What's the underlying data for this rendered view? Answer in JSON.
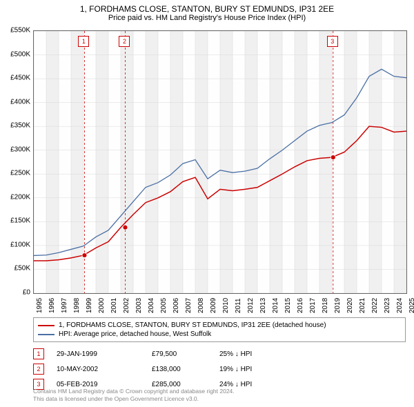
{
  "title": "1, FORDHAMS CLOSE, STANTON, BURY ST EDMUNDS, IP31 2EE",
  "subtitle": "Price paid vs. HM Land Registry's House Price Index (HPI)",
  "chart": {
    "type": "line",
    "background_color": "#ffffff",
    "plot_border_color": "#666666",
    "grid_color": "#d8d8d8",
    "alt_band_color": "#f0f0f0",
    "x_axis": {
      "min": 1995,
      "max": 2025,
      "tick_step": 1,
      "label_fontsize": 10
    },
    "y_axis": {
      "min": 0,
      "max": 550000,
      "tick_step": 50000,
      "tick_format_prefix": "£",
      "tick_format_suffix": "K",
      "label_fontsize": 10
    },
    "series": [
      {
        "name": "1, FORDHAMS CLOSE, STANTON, BURY ST EDMUNDS, IP31 2EE (detached house)",
        "color": "#cc0000",
        "line_width": 1.5,
        "data": [
          [
            1995,
            68000
          ],
          [
            1996,
            68000
          ],
          [
            1997,
            70000
          ],
          [
            1998,
            74000
          ],
          [
            1999,
            79500
          ],
          [
            2000,
            95000
          ],
          [
            2001,
            108000
          ],
          [
            2002,
            138000
          ],
          [
            2003,
            165000
          ],
          [
            2004,
            190000
          ],
          [
            2005,
            200000
          ],
          [
            2006,
            213000
          ],
          [
            2007,
            234000
          ],
          [
            2008,
            243000
          ],
          [
            2009,
            198000
          ],
          [
            2010,
            218000
          ],
          [
            2011,
            215000
          ],
          [
            2012,
            218000
          ],
          [
            2013,
            222000
          ],
          [
            2014,
            236000
          ],
          [
            2015,
            250000
          ],
          [
            2016,
            265000
          ],
          [
            2017,
            278000
          ],
          [
            2018,
            283000
          ],
          [
            2019,
            285000
          ],
          [
            2020,
            296000
          ],
          [
            2021,
            320000
          ],
          [
            2022,
            350000
          ],
          [
            2023,
            348000
          ],
          [
            2024,
            338000
          ],
          [
            2025,
            340000
          ]
        ]
      },
      {
        "name": "HPI: Average price, detached house, West Suffolk",
        "color": "#4a6fa5",
        "line_width": 1.3,
        "data": [
          [
            1995,
            79000
          ],
          [
            1996,
            80000
          ],
          [
            1997,
            85000
          ],
          [
            1998,
            92000
          ],
          [
            1999,
            99000
          ],
          [
            2000,
            118000
          ],
          [
            2001,
            132000
          ],
          [
            2002,
            162000
          ],
          [
            2003,
            192000
          ],
          [
            2004,
            222000
          ],
          [
            2005,
            232000
          ],
          [
            2006,
            248000
          ],
          [
            2007,
            272000
          ],
          [
            2008,
            280000
          ],
          [
            2009,
            240000
          ],
          [
            2010,
            258000
          ],
          [
            2011,
            253000
          ],
          [
            2012,
            256000
          ],
          [
            2013,
            262000
          ],
          [
            2014,
            282000
          ],
          [
            2015,
            300000
          ],
          [
            2016,
            320000
          ],
          [
            2017,
            340000
          ],
          [
            2018,
            352000
          ],
          [
            2019,
            358000
          ],
          [
            2020,
            374000
          ],
          [
            2021,
            410000
          ],
          [
            2022,
            455000
          ],
          [
            2023,
            470000
          ],
          [
            2024,
            455000
          ],
          [
            2025,
            452000
          ]
        ]
      }
    ],
    "markers": [
      {
        "num": "1",
        "date": "29-JAN-1999",
        "price": "£79,500",
        "delta": "25% ↓ HPI",
        "x": 1999.08,
        "y": 79500,
        "vline_color": "#cc0000"
      },
      {
        "num": "2",
        "date": "10-MAY-2002",
        "price": "£138,000",
        "delta": "19% ↓ HPI",
        "x": 2002.36,
        "y": 138000,
        "vline_color": "#cc0000"
      },
      {
        "num": "3",
        "date": "05-FEB-2019",
        "price": "£285,000",
        "delta": "24% ↓ HPI",
        "x": 2019.1,
        "y": 285000,
        "vline_color": "#cc0000"
      }
    ]
  },
  "legend_title_fontsize": 10,
  "footer_line1": "Contains HM Land Registry data © Crown copyright and database right 2024.",
  "footer_line2": "This data is licensed under the Open Government Licence v3.0."
}
